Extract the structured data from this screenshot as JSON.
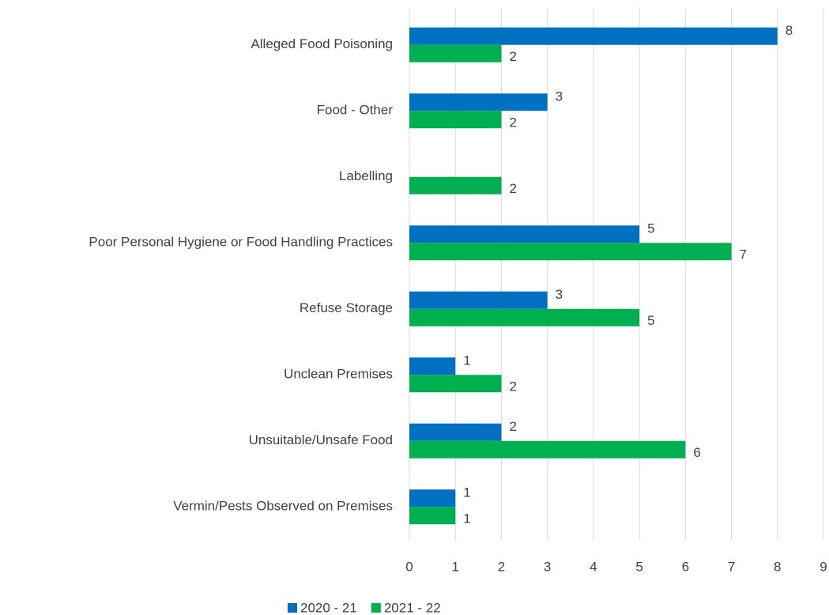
{
  "chart_data": {
    "type": "hbar",
    "categories": [
      "Alleged Food Poisoning",
      "Food - Other",
      "Labelling",
      "Poor Personal Hygiene or Food Handling Practices",
      "Refuse Storage",
      "Unclean Premises",
      "Unsuitable/Unsafe Food",
      "Vermin/Pests Observed on Premises"
    ],
    "series": [
      {
        "name": "2020 - 21",
        "color": "#0070c0",
        "values": [
          8,
          3,
          null,
          5,
          3,
          1,
          2,
          1
        ]
      },
      {
        "name": "2021 - 22",
        "color": "#00b050",
        "values": [
          2,
          2,
          2,
          7,
          5,
          2,
          6,
          1
        ]
      }
    ],
    "xlim": [
      0,
      9
    ],
    "xticks": [
      0,
      1,
      2,
      3,
      4,
      5,
      6,
      7,
      8,
      9
    ],
    "grid": true,
    "legend": "bottom"
  }
}
